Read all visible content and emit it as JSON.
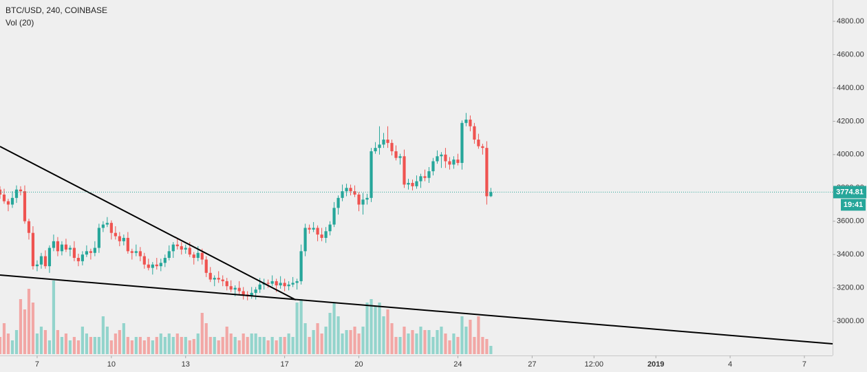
{
  "chart_data": {
    "type": "candlestick",
    "title": "BTC/USD, 240, COINBASE",
    "subtitle": "Vol (20)",
    "last_price": 3774.81,
    "countdown": "19:41",
    "up_color": "#26a69a",
    "down_color": "#ef5350",
    "volume_up_color": "#93d4cc",
    "volume_down_color": "#f2a7a5",
    "trendline_color": "#000000",
    "grid": false,
    "xlim": [
      5.5,
      39.14
    ],
    "ylim": [
      2794,
      4928
    ],
    "xticks": [
      7,
      10,
      13,
      17,
      20,
      24,
      27,
      {
        "value": 29.5,
        "label": "12:00"
      },
      {
        "value": 32,
        "label": "2019"
      },
      {
        "value": 35,
        "label": "4"
      },
      {
        "value": 38,
        "label": "7"
      }
    ],
    "yticks": [
      {
        "value": 3000,
        "label": "3000.00"
      },
      {
        "value": 3200,
        "label": "3200.00"
      },
      {
        "value": 3400,
        "label": "3400.00"
      },
      {
        "value": 3600,
        "label": "3600.00"
      },
      {
        "value": 3800,
        "label": "3800.00"
      },
      {
        "value": 4000,
        "label": "4000.00"
      },
      {
        "value": 4200,
        "label": "4200.00"
      },
      {
        "value": 4400,
        "label": "4400.00"
      },
      {
        "value": 4600,
        "label": "4600.00"
      },
      {
        "value": 4800,
        "label": "4800.00"
      }
    ],
    "x": [
      5.5,
      5.667,
      5.833,
      6,
      6.167,
      6.333,
      6.5,
      6.667,
      6.833,
      7,
      7.167,
      7.333,
      7.5,
      7.667,
      7.833,
      8,
      8.167,
      8.333,
      8.5,
      8.667,
      8.833,
      9,
      9.167,
      9.333,
      9.5,
      9.667,
      9.833,
      10,
      10.167,
      10.333,
      10.5,
      10.667,
      10.833,
      11,
      11.167,
      11.333,
      11.5,
      11.667,
      11.833,
      12,
      12.167,
      12.333,
      12.5,
      12.667,
      12.833,
      13,
      13.167,
      13.333,
      13.5,
      13.667,
      13.833,
      14,
      14.167,
      14.333,
      14.5,
      14.667,
      14.833,
      15,
      15.167,
      15.333,
      15.5,
      15.667,
      15.833,
      16,
      16.167,
      16.333,
      16.5,
      16.667,
      16.833,
      17,
      17.167,
      17.333,
      17.5,
      17.667,
      17.833,
      18,
      18.167,
      18.333,
      18.5,
      18.667,
      18.833,
      19,
      19.167,
      19.333,
      19.5,
      19.667,
      19.833,
      20,
      20.167,
      20.333,
      20.5,
      20.667,
      20.833,
      21,
      21.167,
      21.333,
      21.5,
      21.667,
      21.833,
      22,
      22.167,
      22.333,
      22.5,
      22.667,
      22.833,
      23,
      23.167,
      23.333,
      23.5,
      23.667,
      23.833,
      24,
      24.167,
      24.333,
      24.5,
      24.667,
      24.833,
      25,
      25.167,
      25.333
    ],
    "open": [
      3790,
      3760,
      3720,
      3700,
      3740,
      3790,
      3780,
      3600,
      3530,
      3330,
      3340,
      3390,
      3330,
      3440,
      3480,
      3420,
      3460,
      3430,
      3440,
      3380,
      3360,
      3400,
      3420,
      3410,
      3440,
      3560,
      3580,
      3590,
      3530,
      3510,
      3480,
      3500,
      3420,
      3410,
      3420,
      3390,
      3340,
      3320,
      3340,
      3330,
      3350,
      3380,
      3420,
      3460,
      3450,
      3430,
      3440,
      3400,
      3380,
      3410,
      3370,
      3290,
      3250,
      3260,
      3250,
      3240,
      3210,
      3190,
      3200,
      3180,
      3160,
      3150,
      3170,
      3190,
      3220,
      3230,
      3225,
      3240,
      3215,
      3230,
      3210,
      3220,
      3230,
      3240,
      3420,
      3560,
      3550,
      3560,
      3520,
      3500,
      3540,
      3580,
      3680,
      3740,
      3780,
      3800,
      3780,
      3760,
      3700,
      3730,
      3740,
      4020,
      4040,
      4060,
      4090,
      4070,
      4020,
      3980,
      3990,
      3820,
      3830,
      3810,
      3840,
      3870,
      3860,
      3900,
      3960,
      3990,
      4000,
      3960,
      3940,
      3970,
      3950,
      4190,
      4210,
      4170,
      4090,
      4050,
      4040,
      3750
    ],
    "high": [
      3810,
      3795,
      3735,
      3780,
      3815,
      3810,
      3815,
      3615,
      3570,
      3365,
      3410,
      3425,
      3455,
      3520,
      3505,
      3480,
      3495,
      3455,
      3480,
      3405,
      3420,
      3455,
      3435,
      3480,
      3585,
      3600,
      3625,
      3605,
      3570,
      3535,
      3520,
      3535,
      3435,
      3460,
      3445,
      3410,
      3375,
      3355,
      3380,
      3375,
      3400,
      3455,
      3475,
      3500,
      3475,
      3460,
      3475,
      3415,
      3450,
      3435,
      3390,
      3325,
      3275,
      3300,
      3275,
      3260,
      3245,
      3215,
      3240,
      3205,
      3180,
      3205,
      3205,
      3260,
      3255,
      3250,
      3275,
      3255,
      3270,
      3255,
      3240,
      3265,
      3255,
      3460,
      3585,
      3580,
      3595,
      3575,
      3560,
      3565,
      3600,
      3715,
      3755,
      3820,
      3825,
      3820,
      3815,
      3775,
      3770,
      3765,
      4040,
      4075,
      4170,
      4130,
      4170,
      4090,
      4055,
      4005,
      4030,
      3855,
      3850,
      3875,
      3885,
      3910,
      3925,
      3980,
      4025,
      4015,
      4040,
      3985,
      3990,
      4005,
      4205,
      4250,
      4235,
      4190,
      4125,
      4065,
      4080,
      3800
    ],
    "low": [
      3735,
      3705,
      3660,
      3680,
      3710,
      3755,
      3585,
      3490,
      3310,
      3300,
      3315,
      3315,
      3290,
      3420,
      3390,
      3395,
      3415,
      3390,
      3360,
      3330,
      3335,
      3385,
      3370,
      3390,
      3410,
      3535,
      3565,
      3490,
      3490,
      3450,
      3455,
      3405,
      3370,
      3390,
      3360,
      3315,
      3305,
      3280,
      3310,
      3300,
      3325,
      3365,
      3380,
      3430,
      3400,
      3405,
      3385,
      3340,
      3360,
      3340,
      3265,
      3235,
      3210,
      3230,
      3210,
      3185,
      3175,
      3150,
      3160,
      3130,
      3125,
      3135,
      3130,
      3170,
      3190,
      3200,
      3210,
      3175,
      3195,
      3180,
      3185,
      3205,
      3190,
      3220,
      3390,
      3525,
      3535,
      3480,
      3480,
      3470,
      3515,
      3565,
      3640,
      3720,
      3750,
      3755,
      3745,
      3660,
      3640,
      3700,
      3715,
      4005,
      4000,
      4040,
      4040,
      3995,
      3965,
      3940,
      3800,
      3790,
      3785,
      3795,
      3800,
      3840,
      3830,
      3875,
      3945,
      3920,
      3920,
      3910,
      3915,
      3935,
      3910,
      4170,
      4140,
      4065,
      4035,
      4000,
      3700,
      3745
    ],
    "close": [
      3760,
      3720,
      3700,
      3740,
      3790,
      3780,
      3600,
      3530,
      3330,
      3340,
      3390,
      3330,
      3440,
      3480,
      3420,
      3460,
      3430,
      3440,
      3380,
      3360,
      3400,
      3420,
      3410,
      3440,
      3560,
      3580,
      3590,
      3530,
      3510,
      3480,
      3500,
      3420,
      3410,
      3420,
      3390,
      3340,
      3320,
      3340,
      3330,
      3350,
      3380,
      3420,
      3460,
      3450,
      3430,
      3440,
      3400,
      3380,
      3410,
      3370,
      3290,
      3250,
      3260,
      3250,
      3240,
      3210,
      3190,
      3200,
      3180,
      3160,
      3150,
      3170,
      3190,
      3220,
      3230,
      3225,
      3240,
      3215,
      3230,
      3210,
      3220,
      3230,
      3240,
      3420,
      3560,
      3550,
      3560,
      3520,
      3500,
      3540,
      3580,
      3680,
      3740,
      3780,
      3800,
      3780,
      3760,
      3700,
      3730,
      3740,
      4020,
      4040,
      4060,
      4090,
      4070,
      4020,
      3980,
      3990,
      3820,
      3830,
      3810,
      3840,
      3870,
      3860,
      3900,
      3960,
      3990,
      4000,
      3960,
      3940,
      3970,
      3950,
      4190,
      4210,
      4170,
      4090,
      4050,
      4040,
      3750,
      3775
    ],
    "volume": [
      25,
      45,
      30,
      20,
      35,
      80,
      65,
      95,
      75,
      30,
      40,
      35,
      20,
      107,
      35,
      25,
      30,
      20,
      25,
      20,
      40,
      30,
      25,
      25,
      25,
      55,
      40,
      20,
      30,
      35,
      45,
      25,
      20,
      25,
      25,
      20,
      25,
      20,
      25,
      30,
      25,
      30,
      25,
      30,
      25,
      25,
      20,
      22,
      30,
      60,
      45,
      25,
      25,
      20,
      25,
      40,
      30,
      25,
      20,
      30,
      25,
      30,
      30,
      25,
      25,
      20,
      25,
      20,
      25,
      25,
      30,
      25,
      75,
      80,
      45,
      25,
      35,
      45,
      30,
      40,
      60,
      75,
      55,
      30,
      35,
      35,
      40,
      30,
      40,
      75,
      80,
      70,
      75,
      55,
      65,
      45,
      25,
      25,
      40,
      30,
      35,
      30,
      40,
      35,
      35,
      25,
      35,
      40,
      30,
      20,
      30,
      25,
      55,
      40,
      50,
      25,
      55,
      25,
      22,
      12
    ],
    "trendlines": [
      {
        "x": [
          5.5,
          17.45
        ],
        "y": [
          4049,
          3128
        ]
      },
      {
        "x": [
          5.5,
          39.14
        ],
        "y": [
          3277,
          2864
        ]
      }
    ]
  }
}
